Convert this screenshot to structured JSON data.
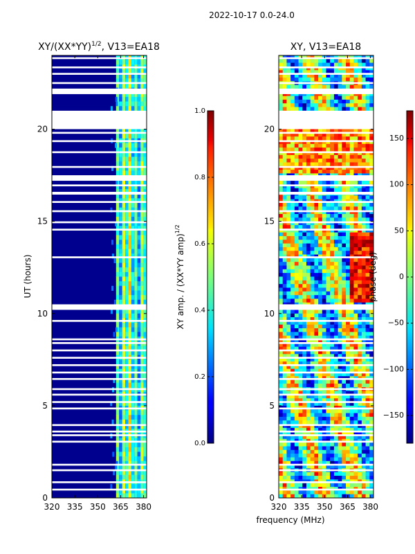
{
  "figure": {
    "suptitle": "2022-10-17 0.0-24.0",
    "shared_xlabel": "frequency (MHz)"
  },
  "chart_data": [
    {
      "type": "heatmap",
      "title_main": "XY/(XX*YY)",
      "title_sup": "1/2",
      "title_rest": ", V13=EA18",
      "ylabel": "UT (hours)",
      "xlim": [
        320,
        382
      ],
      "ylim": [
        0,
        24
      ],
      "x_ticks": [
        "320",
        "335",
        "350",
        "365",
        "380"
      ],
      "x_tick_values": [
        320,
        335,
        350,
        365,
        380
      ],
      "y_ticks": [
        "0",
        "5",
        "10",
        "15",
        "20"
      ],
      "y_tick_values": [
        0,
        5,
        10,
        15,
        20
      ],
      "colorbar": {
        "label_main": "XY amp. / (XX*YY amp)",
        "label_sup": "1/2",
        "ticks": [
          "0.0",
          "0.2",
          "0.4",
          "0.6",
          "0.8",
          "1.0"
        ],
        "tick_values": [
          0.0,
          0.2,
          0.4,
          0.6,
          0.8,
          1.0
        ],
        "range": [
          0,
          1
        ]
      },
      "blank_bands_ut": [
        [
          0.4,
          0.5
        ],
        [
          0.8,
          0.9
        ],
        [
          1.45,
          1.55
        ],
        [
          1.75,
          1.85
        ],
        [
          3.0,
          3.1
        ],
        [
          3.35,
          3.45
        ],
        [
          3.55,
          3.65
        ],
        [
          3.9,
          4.0
        ],
        [
          4.8,
          4.9
        ],
        [
          5.15,
          5.25
        ],
        [
          5.55,
          5.65
        ],
        [
          5.85,
          5.95
        ],
        [
          6.4,
          6.5
        ],
        [
          6.75,
          6.85
        ],
        [
          7.15,
          7.25
        ],
        [
          7.55,
          7.65
        ],
        [
          7.95,
          8.05
        ],
        [
          8.35,
          8.45
        ],
        [
          8.55,
          8.65
        ],
        [
          9.55,
          9.65
        ],
        [
          10.2,
          10.5
        ],
        [
          13.0,
          13.1
        ],
        [
          14.5,
          14.6
        ],
        [
          14.9,
          15.0
        ],
        [
          15.5,
          15.6
        ],
        [
          16.0,
          16.1
        ],
        [
          16.45,
          16.6
        ],
        [
          16.9,
          17.0
        ],
        [
          17.2,
          17.5
        ],
        [
          17.9,
          18.0
        ],
        [
          18.7,
          18.8
        ],
        [
          19.3,
          19.4
        ],
        [
          19.75,
          19.85
        ],
        [
          20.0,
          21.0
        ],
        [
          21.9,
          22.2
        ],
        [
          22.45,
          22.55
        ],
        [
          22.95,
          23.05
        ],
        [
          23.3,
          23.4
        ],
        [
          23.8,
          23.9
        ]
      ]
    },
    {
      "type": "heatmap",
      "title": "XY, V13=EA18",
      "xlim": [
        320,
        382
      ],
      "ylim": [
        0,
        24
      ],
      "x_ticks": [
        "320",
        "335",
        "350",
        "365",
        "380"
      ],
      "x_tick_values": [
        320,
        335,
        350,
        365,
        380
      ],
      "y_ticks": [
        "0",
        "5",
        "10",
        "15",
        "20"
      ],
      "y_tick_values": [
        0,
        5,
        10,
        15,
        20
      ],
      "colorbar": {
        "label": "phase (deg)",
        "ticks": [
          "−150",
          "−100",
          "−50",
          "0",
          "50",
          "100",
          "150"
        ],
        "tick_values": [
          -150,
          -100,
          -50,
          0,
          50,
          100,
          150
        ],
        "range": [
          -180,
          180
        ]
      },
      "blank_bands_ut": [
        [
          0.4,
          0.5
        ],
        [
          0.8,
          0.9
        ],
        [
          1.45,
          1.55
        ],
        [
          1.75,
          1.85
        ],
        [
          3.0,
          3.1
        ],
        [
          3.35,
          3.45
        ],
        [
          3.55,
          3.65
        ],
        [
          3.9,
          4.0
        ],
        [
          4.8,
          4.9
        ],
        [
          5.15,
          5.25
        ],
        [
          5.55,
          5.65
        ],
        [
          5.85,
          5.95
        ],
        [
          6.4,
          6.5
        ],
        [
          6.75,
          6.85
        ],
        [
          7.15,
          7.25
        ],
        [
          7.55,
          7.65
        ],
        [
          7.95,
          8.05
        ],
        [
          8.35,
          8.45
        ],
        [
          8.55,
          8.65
        ],
        [
          9.55,
          9.65
        ],
        [
          10.2,
          10.5
        ],
        [
          13.0,
          13.1
        ],
        [
          14.5,
          14.6
        ],
        [
          14.9,
          15.0
        ],
        [
          15.5,
          15.6
        ],
        [
          16.0,
          16.1
        ],
        [
          16.45,
          16.6
        ],
        [
          16.9,
          17.0
        ],
        [
          17.2,
          17.5
        ],
        [
          17.9,
          18.0
        ],
        [
          18.7,
          18.8
        ],
        [
          19.3,
          19.4
        ],
        [
          19.75,
          19.85
        ],
        [
          20.0,
          21.0
        ],
        [
          21.9,
          22.2
        ],
        [
          22.45,
          22.55
        ],
        [
          22.95,
          23.05
        ],
        [
          23.3,
          23.4
        ],
        [
          23.8,
          23.9
        ]
      ]
    }
  ]
}
